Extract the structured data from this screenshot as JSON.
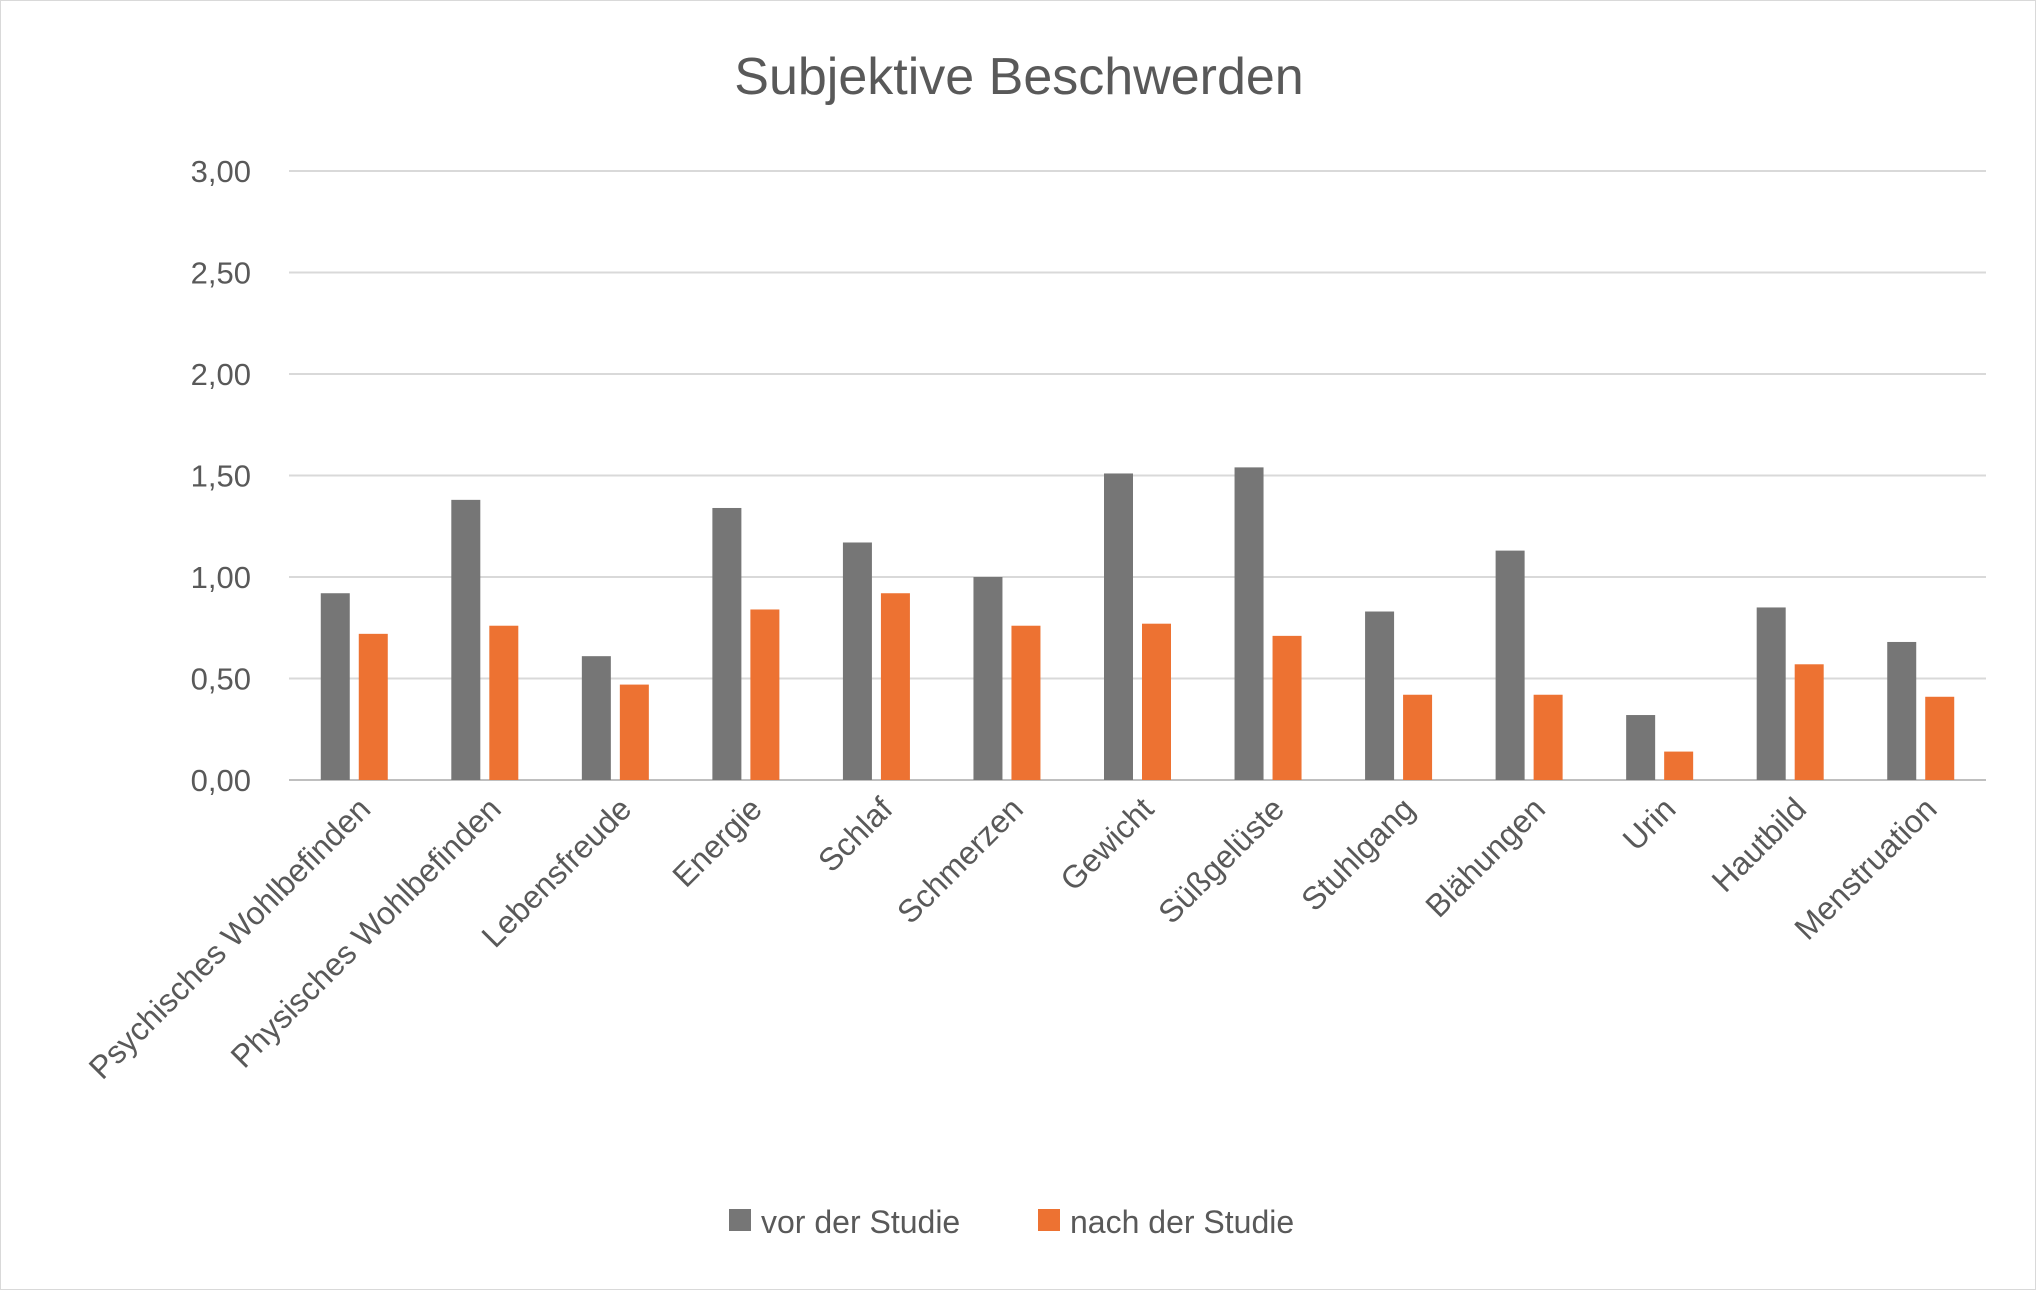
{
  "chart_data": {
    "type": "bar",
    "title": "Subjektive Beschwerden",
    "xlabel": "",
    "ylabel": "",
    "ylim": [
      0,
      3
    ],
    "yticks": [
      "0,00",
      "0,50",
      "1,00",
      "1,50",
      "2,00",
      "2,50",
      "3,00"
    ],
    "grid": true,
    "legend_position": "bottom",
    "categories": [
      "Psychisches Wohlbefinden",
      "Physisches Wohlbefinden",
      "Lebensfreude",
      "Energie",
      "Schlaf",
      "Schmerzen",
      "Gewicht",
      "Süßgelüste",
      "Stuhlgang",
      "Blähungen",
      "Urin",
      "Hautbild",
      "Menstruation"
    ],
    "series": [
      {
        "name": "vor der Studie",
        "color": "#767676",
        "values": [
          0.92,
          1.38,
          0.61,
          1.34,
          1.17,
          1.0,
          1.51,
          1.54,
          0.83,
          1.13,
          0.32,
          0.85,
          0.68
        ]
      },
      {
        "name": "nach der Studie",
        "color": "#ed7232",
        "values": [
          0.72,
          0.76,
          0.47,
          0.84,
          0.92,
          0.76,
          0.77,
          0.71,
          0.42,
          0.42,
          0.14,
          0.57,
          0.41
        ]
      }
    ]
  }
}
